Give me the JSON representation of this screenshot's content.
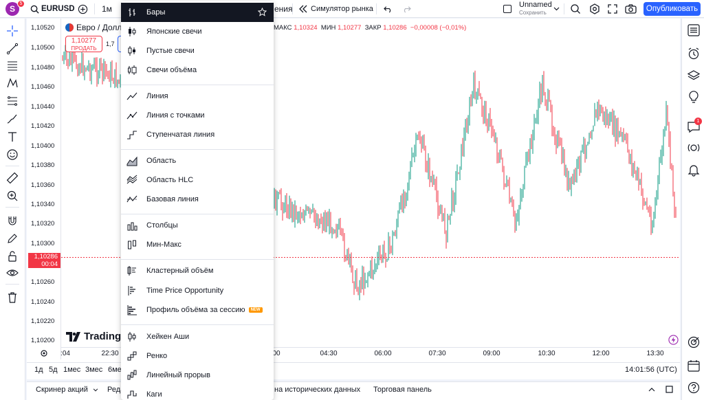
{
  "topbar": {
    "avatar_letter": "S",
    "avatar_badge": "5",
    "symbol": "EURUSD",
    "interval": "1м",
    "indicators_partial": "ения",
    "replay_label": "Симулятор рынка",
    "layout_name": "Unnamed",
    "layout_status": "Сохранить",
    "publish_label": "Опубликовать"
  },
  "legend": {
    "title": "Евро / Долла",
    "ohlc_prefix": "МАКС",
    "high": "1,10324",
    "low_label": "МИН",
    "low": "1,10277",
    "close_label": "ЗАКР",
    "close": "1,10286",
    "change": "−0,00008 (−0,01%)",
    "sell_price": "1,10277",
    "sell_label": "ПРОДАТЬ",
    "spread": "1,7"
  },
  "price_scale": {
    "labels": [
      "1,10520",
      "1,10500",
      "1,10480",
      "1,10460",
      "1,10440",
      "1,10420",
      "1,10400",
      "1,10380",
      "1,10360",
      "1,10340",
      "1,10320",
      "1,10300",
      "1,10260",
      "1,10240",
      "1,10220",
      "1,10200"
    ],
    "current_price": "1,10286",
    "countdown": "00:04"
  },
  "time_axis": {
    "labels": [
      ":04",
      "22:30",
      "00",
      "04:30",
      "06:00",
      "07:30",
      "09:00",
      "10:30",
      "12:00",
      "13:30"
    ]
  },
  "bottom": {
    "ranges": [
      "1д",
      "5д",
      "1мес",
      "3мес",
      "6ме"
    ],
    "clock": "14:01:56 (UTC)"
  },
  "footer": {
    "items": [
      "Скринер акций",
      "Реда",
      "на исторических данных",
      "Торговая панель"
    ]
  },
  "logo": {
    "text": "Trading"
  },
  "menu": {
    "items": [
      {
        "label": "Бары",
        "icon": "bars-icon",
        "selected": true
      },
      {
        "label": "Японские свечи",
        "icon": "candles-icon"
      },
      {
        "label": "Пустые свечи",
        "icon": "hollow-candles-icon"
      },
      {
        "label": "Свечи объёма",
        "icon": "volume-candles-icon"
      },
      {
        "label": "Линия",
        "icon": "line-icon"
      },
      {
        "label": "Линия с точками",
        "icon": "line-markers-icon"
      },
      {
        "label": "Ступенчатая линия",
        "icon": "step-line-icon"
      },
      {
        "label": "Область",
        "icon": "area-icon"
      },
      {
        "label": "Область HLC",
        "icon": "hlc-area-icon"
      },
      {
        "label": "Базовая линия",
        "icon": "baseline-icon"
      },
      {
        "label": "Столбцы",
        "icon": "columns-icon"
      },
      {
        "label": "Мин-Макс",
        "icon": "high-low-icon"
      },
      {
        "label": "Кластерный объём",
        "icon": "volume-footprint-icon"
      },
      {
        "label": "Time Price Opportunity",
        "icon": "tpo-icon"
      },
      {
        "label": "Профиль объёма за сессию",
        "icon": "session-volume-icon",
        "badge": "NEW"
      },
      {
        "label": "Хейкен Аши",
        "icon": "heikin-ashi-icon"
      },
      {
        "label": "Ренко",
        "icon": "renko-icon"
      },
      {
        "label": "Линейный прорыв",
        "icon": "line-break-icon"
      },
      {
        "label": "Каги",
        "icon": "kagi-icon"
      }
    ]
  },
  "colors": {
    "accent": "#2962ff",
    "up": "#089981",
    "down": "#f23645"
  }
}
